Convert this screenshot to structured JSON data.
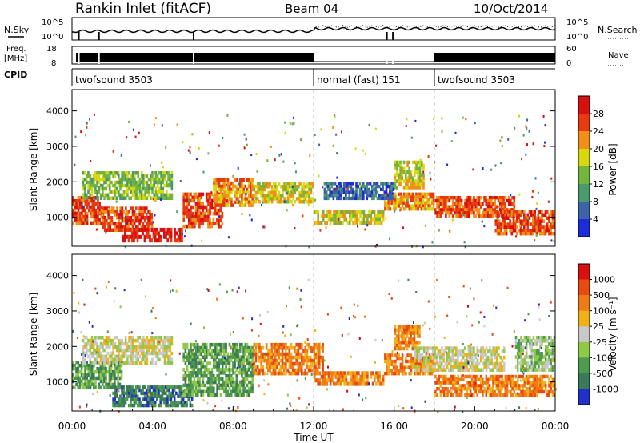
{
  "header": {
    "title": "Rankin Inlet (fitACF)",
    "beam": "Beam 04",
    "date": "10/Oct/2014"
  },
  "top_panel": {
    "nsky_label": "N.Sky",
    "nsearch_label": "N.Search",
    "left_ticks": [
      "10^5",
      "10^0"
    ],
    "right_ticks": [
      "10^5",
      "10^0"
    ],
    "freq_label_1": "Freq.",
    "freq_label_2": "[MHz]",
    "freq_ticks": [
      "18",
      "8"
    ],
    "nave_label": "Nave",
    "nave_ticks": [
      "60",
      "0"
    ],
    "cpid_label": "CPID",
    "cpid_segments": [
      {
        "label": "twofsound 3503",
        "start_hour": 0
      },
      {
        "label": "normal (fast) 151",
        "start_hour": 12
      },
      {
        "label": "twofsound 3503",
        "start_hour": 18
      }
    ]
  },
  "chart_data": [
    {
      "type": "heatmap",
      "name": "power",
      "ylabel": "Slant Range [km]",
      "yticks": [
        "1000",
        "2000",
        "3000",
        "4000"
      ],
      "ylim": [
        180,
        4600
      ],
      "colorbar_label": "Power [dB]",
      "colorbar_ticks": [
        "4",
        "8",
        "12",
        "16",
        "20",
        "24",
        "28"
      ],
      "colorbar_colors": [
        "#1e2bd8",
        "#3e63a8",
        "#4a9a6c",
        "#72b43e",
        "#d8d80e",
        "#f09018",
        "#e83a10",
        "#d81010"
      ],
      "xlim_hours": [
        0,
        24
      ],
      "regions": [
        {
          "t0": 0.0,
          "t1": 1.5,
          "r0": 800,
          "r1": 1600,
          "level": 6
        },
        {
          "t0": 1.5,
          "t1": 4.0,
          "r0": 600,
          "r1": 1300,
          "level": 6
        },
        {
          "t0": 2.5,
          "t1": 5.5,
          "r0": 300,
          "r1": 700,
          "level": 7
        },
        {
          "t0": 5.5,
          "t1": 7.5,
          "r0": 700,
          "r1": 1700,
          "level": 6
        },
        {
          "t0": 7.0,
          "t1": 9.0,
          "r0": 1300,
          "r1": 2100,
          "level": 5
        },
        {
          "t0": 9.0,
          "t1": 12.0,
          "r0": 1400,
          "r1": 2000,
          "level": 4
        },
        {
          "t0": 12.0,
          "t1": 15.5,
          "r0": 800,
          "r1": 1200,
          "level": 4
        },
        {
          "t0": 15.5,
          "t1": 18.0,
          "r0": 1200,
          "r1": 1700,
          "level": 5
        },
        {
          "t0": 18.0,
          "t1": 22.0,
          "r0": 1000,
          "r1": 1600,
          "level": 6
        },
        {
          "t0": 21.0,
          "t1": 24.0,
          "r0": 500,
          "r1": 1200,
          "level": 6
        },
        {
          "t0": 16.0,
          "t1": 17.5,
          "r0": 1800,
          "r1": 2600,
          "level": 4
        },
        {
          "t0": 0.5,
          "t1": 5.0,
          "r0": 1500,
          "r1": 2300,
          "level": 3
        },
        {
          "t0": 12.5,
          "t1": 16.0,
          "r0": 1500,
          "r1": 2000,
          "level": 1
        }
      ]
    },
    {
      "type": "heatmap",
      "name": "velocity",
      "ylabel": "Slant Range [km]",
      "yticks": [
        "1000",
        "2000",
        "3000",
        "4000"
      ],
      "ylim": [
        180,
        4600
      ],
      "colorbar_label": "Velocity [m s⁻¹]",
      "colorbar_ticks": [
        "1000",
        "500",
        "100",
        "25",
        "-25",
        "-100",
        "-500",
        "-1000"
      ],
      "colorbar_colors": [
        "#2030c8",
        "#3a7a5a",
        "#4e9a4e",
        "#90c848",
        "#c8c8c8",
        "#f0b018",
        "#f07a18",
        "#e84a10",
        "#d81010"
      ],
      "xlim_hours": [
        0,
        24
      ],
      "regions": [
        {
          "t0": 0.0,
          "t1": 2.5,
          "r0": 800,
          "r1": 1600,
          "level": 2
        },
        {
          "t0": 0.5,
          "t1": 5.0,
          "r0": 1500,
          "r1": 2300,
          "level": 4
        },
        {
          "t0": 2.0,
          "t1": 6.0,
          "r0": 300,
          "r1": 900,
          "level": 1
        },
        {
          "t0": 5.5,
          "t1": 9.0,
          "r0": 600,
          "r1": 2100,
          "level": 2
        },
        {
          "t0": 9.0,
          "t1": 12.5,
          "r0": 1200,
          "r1": 2100,
          "level": 6
        },
        {
          "t0": 12.0,
          "t1": 15.5,
          "r0": 900,
          "r1": 1300,
          "level": 6
        },
        {
          "t0": 15.5,
          "t1": 18.0,
          "r0": 1200,
          "r1": 1800,
          "level": 6
        },
        {
          "t0": 16.0,
          "t1": 17.3,
          "r0": 1900,
          "r1": 2600,
          "level": 6
        },
        {
          "t0": 17.0,
          "t1": 21.5,
          "r0": 1300,
          "r1": 2000,
          "level": 4
        },
        {
          "t0": 18.0,
          "t1": 24.0,
          "r0": 600,
          "r1": 1200,
          "level": 6
        },
        {
          "t0": 22.0,
          "t1": 24.0,
          "r0": 1300,
          "r1": 2300,
          "level": 3
        }
      ]
    }
  ],
  "xaxis": {
    "ticks": [
      "00:00",
      "04:00",
      "08:00",
      "12:00",
      "16:00",
      "20:00",
      "00:00"
    ],
    "label": "Time UT"
  }
}
